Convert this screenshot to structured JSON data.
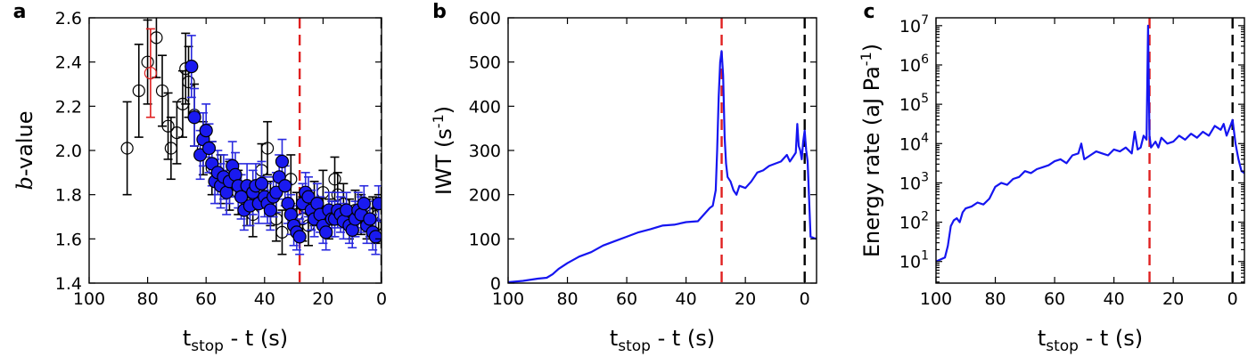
{
  "colors": {
    "series_blue": "#1515f0",
    "marker_blue": "#1a1af0",
    "errorbar_blue": "#2a2adf",
    "red_line": "#e02020",
    "black": "#000000",
    "red_outlier": "#e02020"
  },
  "chart_data": [
    {
      "panel": "a",
      "type": "scatter",
      "xlabel_main": "t",
      "xlabel_sub": "stop",
      "xlabel_rest": " - t (s)",
      "ylabel_italic": "b",
      "ylabel_rest": "-value",
      "xlim": [
        100,
        0
      ],
      "ylim": [
        1.4,
        2.6
      ],
      "xticks": [
        100,
        80,
        60,
        40,
        20,
        0
      ],
      "yticks": [
        "1.4",
        "1.6",
        "1.8",
        "2.0",
        "2.2",
        "2.4",
        "2.6"
      ],
      "vlines": [
        {
          "x": 28,
          "style": "red-dashed"
        },
        {
          "x": 0,
          "style": "black-dashed"
        }
      ],
      "series": [
        {
          "style": "black-open-circle",
          "x": [
            87,
            83,
            80,
            77,
            75,
            73,
            72,
            70,
            68,
            67,
            66,
            64,
            61,
            58,
            55,
            52,
            49,
            46,
            44,
            41,
            39,
            38,
            36,
            34,
            31,
            29,
            27,
            25,
            23,
            20,
            18,
            16,
            15,
            13,
            11,
            9,
            7,
            5,
            3,
            2,
            1
          ],
          "y": [
            2.01,
            2.27,
            2.4,
            2.51,
            2.27,
            2.11,
            2.01,
            2.08,
            2.21,
            2.37,
            2.31,
            2.16,
            2.01,
            1.92,
            1.87,
            1.84,
            1.81,
            1.76,
            1.71,
            1.91,
            2.01,
            1.76,
            1.69,
            1.63,
            1.87,
            1.71,
            1.69,
            1.66,
            1.76,
            1.81,
            1.69,
            1.87,
            1.8,
            1.76,
            1.69,
            1.73,
            1.71,
            1.69,
            1.71,
            1.66,
            1.71
          ],
          "err": [
            0.21,
            0.21,
            0.19,
            0.18,
            0.16,
            0.15,
            0.14,
            0.14,
            0.15,
            0.16,
            0.16,
            0.14,
            0.12,
            0.12,
            0.11,
            0.11,
            0.1,
            0.1,
            0.1,
            0.12,
            0.12,
            0.1,
            0.1,
            0.1,
            0.11,
            0.1,
            0.1,
            0.09,
            0.1,
            0.1,
            0.09,
            0.1,
            0.1,
            0.09,
            0.09,
            0.09,
            0.09,
            0.09,
            0.08,
            0.08,
            0.09
          ]
        },
        {
          "style": "red-open-circle",
          "x": [
            79
          ],
          "y": [
            2.35
          ],
          "err": [
            0.2
          ]
        },
        {
          "style": "blue-filled-circle",
          "x": [
            65,
            64,
            62,
            61,
            60,
            59,
            58,
            57,
            56,
            55,
            54,
            53,
            52,
            51,
            50,
            49,
            48,
            47,
            46,
            45,
            44,
            43,
            42,
            41,
            40,
            39,
            38,
            37,
            36,
            35,
            34,
            33,
            32,
            31,
            30,
            29,
            28,
            27,
            26,
            25,
            24,
            23,
            22,
            21,
            20,
            19,
            18,
            17,
            16,
            15,
            14,
            13,
            12,
            11,
            10,
            9,
            8,
            7,
            6,
            5,
            4,
            3,
            2,
            1
          ],
          "y": [
            2.38,
            2.15,
            1.98,
            2.05,
            2.09,
            2.01,
            1.94,
            1.86,
            1.9,
            1.84,
            1.88,
            1.81,
            1.86,
            1.93,
            1.89,
            1.84,
            1.79,
            1.73,
            1.84,
            1.75,
            1.81,
            1.84,
            1.76,
            1.85,
            1.79,
            1.76,
            1.73,
            1.79,
            1.81,
            1.88,
            1.95,
            1.84,
            1.76,
            1.71,
            1.66,
            1.63,
            1.61,
            1.76,
            1.81,
            1.79,
            1.73,
            1.69,
            1.76,
            1.71,
            1.66,
            1.63,
            1.73,
            1.69,
            1.69,
            1.73,
            1.71,
            1.68,
            1.73,
            1.66,
            1.64,
            1.69,
            1.73,
            1.71,
            1.76,
            1.66,
            1.69,
            1.63,
            1.61,
            1.76
          ],
          "err": [
            0.14,
            0.13,
            0.11,
            0.12,
            0.12,
            0.11,
            0.1,
            0.1,
            0.1,
            0.1,
            0.1,
            0.1,
            0.1,
            0.11,
            0.1,
            0.1,
            0.1,
            0.09,
            0.1,
            0.09,
            0.1,
            0.1,
            0.09,
            0.1,
            0.09,
            0.09,
            0.09,
            0.09,
            0.09,
            0.1,
            0.1,
            0.09,
            0.09,
            0.09,
            0.09,
            0.08,
            0.08,
            0.09,
            0.09,
            0.09,
            0.09,
            0.08,
            0.09,
            0.08,
            0.08,
            0.08,
            0.08,
            0.08,
            0.08,
            0.08,
            0.08,
            0.08,
            0.08,
            0.08,
            0.08,
            0.08,
            0.08,
            0.08,
            0.08,
            0.08,
            0.08,
            0.08,
            0.08,
            0.08
          ]
        }
      ]
    },
    {
      "panel": "b",
      "type": "line",
      "xlabel_main": "t",
      "xlabel_sub": "stop",
      "xlabel_rest": " - t (s)",
      "ylabel_main": "IWT (s",
      "ylabel_sup": "-1",
      "ylabel_close": ")",
      "xlim": [
        100,
        -4
      ],
      "ylim": [
        0,
        600
      ],
      "xticks": [
        100,
        80,
        60,
        40,
        20,
        0
      ],
      "yticks": [
        "0",
        "100",
        "200",
        "300",
        "400",
        "500",
        "600"
      ],
      "vlines": [
        {
          "x": 28,
          "style": "red-dashed"
        },
        {
          "x": 0,
          "style": "black-dashed"
        }
      ],
      "series": [
        {
          "style": "blue-line",
          "x": [
            100,
            95,
            90,
            87,
            85,
            83,
            80,
            76,
            72,
            68,
            64,
            60,
            56,
            52,
            48,
            44,
            40,
            36,
            34,
            32,
            31,
            30,
            29.5,
            29,
            28.5,
            28,
            27.5,
            27,
            26.5,
            26,
            25,
            24,
            23,
            22,
            20,
            18,
            16,
            14,
            12,
            10,
            8,
            6,
            5,
            4,
            3,
            2.5,
            2,
            1.5,
            1,
            0.5,
            0,
            -0.5,
            -1,
            -2,
            -3,
            -4
          ],
          "y": [
            2,
            5,
            10,
            12,
            20,
            32,
            45,
            60,
            70,
            85,
            95,
            105,
            115,
            122,
            130,
            132,
            138,
            140,
            155,
            170,
            175,
            210,
            300,
            420,
            500,
            525,
            470,
            330,
            270,
            240,
            230,
            210,
            200,
            220,
            215,
            230,
            250,
            255,
            265,
            270,
            275,
            290,
            275,
            285,
            295,
            360,
            310,
            300,
            280,
            320,
            345,
            300,
            275,
            105,
            102,
            100
          ]
        }
      ]
    },
    {
      "panel": "c",
      "type": "line",
      "scale": "log",
      "xlabel_main": "t",
      "xlabel_sub": "stop",
      "xlabel_rest": " - t (s)",
      "ylabel_main": "Energy rate (aJ Pa",
      "ylabel_sup": "-1",
      "ylabel_close": ")",
      "xlim": [
        100,
        -4
      ],
      "ylim_log10": [
        0.45,
        7.2
      ],
      "xticks": [
        100,
        80,
        60,
        40,
        20,
        0
      ],
      "yticks": [
        {
          "base": "10",
          "exp": "1",
          "log10": 1
        },
        {
          "base": "10",
          "exp": "2",
          "log10": 2
        },
        {
          "base": "10",
          "exp": "3",
          "log10": 3
        },
        {
          "base": "10",
          "exp": "4",
          "log10": 4
        },
        {
          "base": "10",
          "exp": "5",
          "log10": 5
        },
        {
          "base": "10",
          "exp": "6",
          "log10": 6
        },
        {
          "base": "10",
          "exp": "7",
          "log10": 7
        }
      ],
      "vlines": [
        {
          "x": 28,
          "style": "red-dashed"
        },
        {
          "x": 0,
          "style": "black-dashed"
        }
      ],
      "series": [
        {
          "style": "blue-line",
          "x": [
            100,
            97,
            96,
            95,
            94,
            93,
            92,
            91,
            90,
            88,
            86,
            84,
            82,
            80,
            78,
            76,
            74,
            72,
            70,
            68,
            66,
            64,
            62,
            60,
            58,
            56,
            54,
            52,
            51,
            50,
            48,
            46,
            44,
            42,
            40,
            38,
            36,
            34,
            33,
            32,
            31,
            30,
            29,
            28.5,
            28,
            27.5,
            27,
            26,
            25,
            24,
            22,
            20,
            18,
            16,
            14,
            12,
            10,
            8,
            6,
            4,
            3,
            2,
            1,
            0,
            -1,
            -2,
            -3,
            -4
          ],
          "y_log10": [
            1.0,
            1.1,
            1.4,
            1.9,
            2.05,
            2.1,
            2.0,
            2.25,
            2.35,
            2.4,
            2.5,
            2.45,
            2.6,
            2.9,
            3.0,
            2.95,
            3.1,
            3.15,
            3.3,
            3.25,
            3.35,
            3.4,
            3.45,
            3.55,
            3.6,
            3.5,
            3.7,
            3.75,
            4.0,
            3.6,
            3.7,
            3.8,
            3.75,
            3.7,
            3.85,
            3.8,
            3.9,
            3.75,
            4.3,
            3.85,
            3.9,
            4.2,
            4.1,
            7.0,
            4.2,
            3.9,
            3.95,
            4.05,
            3.9,
            4.15,
            4.0,
            4.05,
            4.2,
            4.1,
            4.25,
            4.15,
            4.3,
            4.2,
            4.45,
            4.35,
            4.5,
            4.2,
            4.4,
            4.6,
            4.0,
            3.6,
            3.3,
            3.25
          ]
        }
      ]
    }
  ]
}
